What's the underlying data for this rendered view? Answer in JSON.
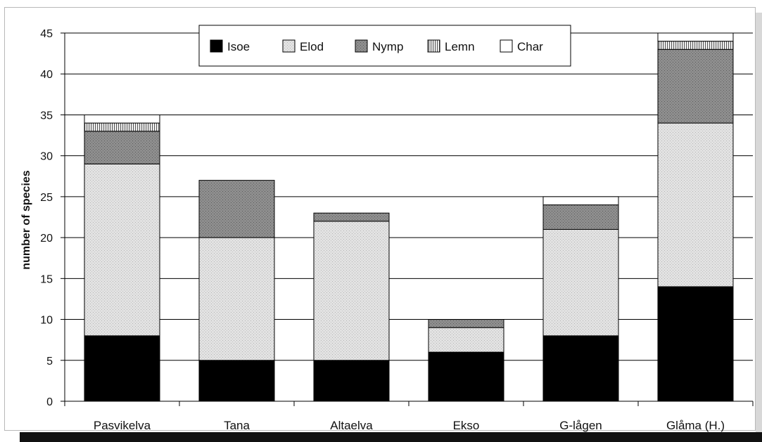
{
  "chart_data": {
    "type": "bar",
    "stacked": true,
    "title": "",
    "xlabel": "",
    "ylabel": "number of species",
    "ylim": [
      0,
      45
    ],
    "yticks": [
      0,
      5,
      10,
      15,
      20,
      25,
      30,
      35,
      40,
      45
    ],
    "grid": true,
    "legend_position": "top-center",
    "categories": [
      "Pasvikelva",
      "Tana",
      "Altaelva",
      "Ekso",
      "G-lågen",
      "Glåma (H.)"
    ],
    "series": [
      {
        "name": "Isoe",
        "values": [
          8,
          5,
          5,
          6,
          8,
          14
        ]
      },
      {
        "name": "Elod",
        "values": [
          21,
          15,
          17,
          3,
          13,
          20
        ]
      },
      {
        "name": "Nymp",
        "values": [
          4,
          7,
          1,
          1,
          3,
          9
        ]
      },
      {
        "name": "Lemn",
        "values": [
          1,
          0,
          0,
          0,
          0,
          1
        ]
      },
      {
        "name": "Char",
        "values": [
          1,
          0,
          0,
          0,
          1,
          1
        ]
      }
    ],
    "colors": {
      "Isoe": "#000000",
      "Elod": "#dcdcdc",
      "Nymp": "#8a8a8a",
      "Lemn": "#bdbdbd",
      "Char": "#ffffff"
    }
  }
}
